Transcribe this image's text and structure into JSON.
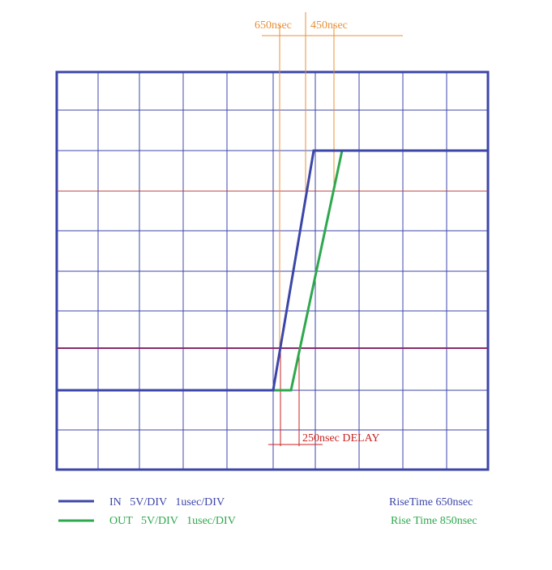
{
  "colors": {
    "in": "#3c46a8",
    "out": "#2ea84e",
    "measure": "#e8913a",
    "delay": "#cc2222",
    "grid": "#3c46a8",
    "ref_high": "#b84040",
    "ref_low": "#8a2a6a"
  },
  "annotations": {
    "in_rise_label": "650nsec",
    "out_offset_label": "450nsec",
    "delay_label": "250nsec DELAY"
  },
  "legend": [
    {
      "label": "IN   5V/DIV   1usec/DIV",
      "rise": "RiseTime 650nsec",
      "color": "#3c46a8"
    },
    {
      "label": "OUT   5V/DIV   1usec/DIV",
      "rise": "Rise Time 850nsec",
      "color": "#2ea84e"
    }
  ]
}
